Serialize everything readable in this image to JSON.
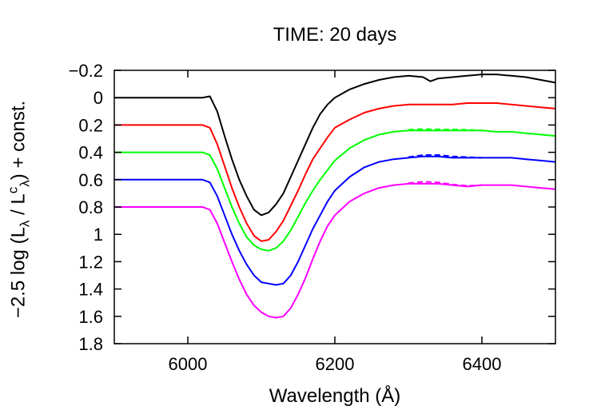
{
  "chart_data": {
    "type": "line",
    "title": "TIME: 20 days",
    "xlabel": "Wavelength (Å)",
    "ylabel": {
      "prefix": "−2.5 log (L",
      "sub1": "λ",
      "mid": " / L",
      "sup": "c",
      "sub2": "λ",
      "suffix": ") + const."
    },
    "xlim": [
      5900,
      6500
    ],
    "ylim": [
      -0.2,
      1.8
    ],
    "y_inverted": true,
    "xticks": [
      6000,
      6200,
      6400
    ],
    "xtick_labels": [
      "6000",
      "6200",
      "6400"
    ],
    "yticks": [
      -0.2,
      0,
      0.2,
      0.4,
      0.6,
      0.8,
      1,
      1.2,
      1.4,
      1.6,
      1.8
    ],
    "ytick_labels": [
      "−0.2",
      "0",
      "0.2",
      "0.4",
      "0.6",
      "0.8",
      "1",
      "1.2",
      "1.4",
      "1.6",
      "1.8"
    ],
    "grid": false,
    "legend": "none",
    "series": [
      {
        "color": "#000000",
        "style": "solid",
        "x": [
          5900,
          6020,
          6030,
          6040,
          6050,
          6060,
          6070,
          6080,
          6090,
          6100,
          6110,
          6120,
          6130,
          6140,
          6150,
          6160,
          6170,
          6180,
          6190,
          6200,
          6220,
          6240,
          6260,
          6280,
          6300,
          6320,
          6330,
          6340,
          6360,
          6380,
          6400,
          6420,
          6440,
          6460,
          6480,
          6500
        ],
        "y": [
          0,
          0,
          -0.01,
          0.1,
          0.28,
          0.45,
          0.6,
          0.72,
          0.82,
          0.86,
          0.84,
          0.78,
          0.7,
          0.58,
          0.46,
          0.34,
          0.22,
          0.12,
          0.05,
          0.0,
          -0.06,
          -0.1,
          -0.13,
          -0.15,
          -0.16,
          -0.15,
          -0.12,
          -0.14,
          -0.15,
          -0.16,
          -0.17,
          -0.17,
          -0.16,
          -0.15,
          -0.13,
          -0.11
        ]
      },
      {
        "color": "#ff0000",
        "style": "solid",
        "x": [
          5900,
          6020,
          6030,
          6040,
          6050,
          6060,
          6070,
          6080,
          6090,
          6100,
          6110,
          6120,
          6130,
          6140,
          6150,
          6160,
          6170,
          6180,
          6190,
          6200,
          6220,
          6240,
          6260,
          6280,
          6300,
          6320,
          6340,
          6360,
          6380,
          6400,
          6420,
          6440,
          6460,
          6480,
          6500
        ],
        "y": [
          0.2,
          0.2,
          0.22,
          0.34,
          0.5,
          0.66,
          0.8,
          0.92,
          1.01,
          1.05,
          1.04,
          0.98,
          0.9,
          0.79,
          0.68,
          0.56,
          0.45,
          0.37,
          0.29,
          0.22,
          0.16,
          0.11,
          0.08,
          0.06,
          0.05,
          0.05,
          0.05,
          0.05,
          0.04,
          0.04,
          0.04,
          0.05,
          0.06,
          0.07,
          0.08
        ]
      },
      {
        "color": "#00ff00",
        "style": "solid",
        "x": [
          5900,
          6020,
          6030,
          6040,
          6050,
          6060,
          6070,
          6080,
          6090,
          6100,
          6110,
          6120,
          6130,
          6140,
          6150,
          6160,
          6170,
          6180,
          6190,
          6200,
          6220,
          6240,
          6260,
          6280,
          6300,
          6320,
          6340,
          6360,
          6380,
          6400,
          6420,
          6440,
          6460,
          6480,
          6500
        ],
        "y": [
          0.4,
          0.4,
          0.42,
          0.52,
          0.66,
          0.8,
          0.92,
          1.02,
          1.08,
          1.11,
          1.12,
          1.1,
          1.05,
          0.97,
          0.87,
          0.77,
          0.68,
          0.6,
          0.53,
          0.46,
          0.37,
          0.31,
          0.27,
          0.25,
          0.24,
          0.24,
          0.24,
          0.24,
          0.24,
          0.24,
          0.25,
          0.25,
          0.26,
          0.27,
          0.28
        ]
      },
      {
        "color": "#0000ff",
        "style": "solid",
        "x": [
          5900,
          6020,
          6030,
          6040,
          6050,
          6060,
          6070,
          6080,
          6090,
          6100,
          6110,
          6120,
          6130,
          6140,
          6150,
          6160,
          6170,
          6180,
          6190,
          6200,
          6220,
          6240,
          6260,
          6280,
          6300,
          6320,
          6340,
          6360,
          6380,
          6400,
          6420,
          6440,
          6460,
          6480,
          6500
        ],
        "y": [
          0.6,
          0.6,
          0.62,
          0.72,
          0.86,
          1.0,
          1.12,
          1.22,
          1.3,
          1.35,
          1.36,
          1.37,
          1.36,
          1.3,
          1.2,
          1.08,
          0.96,
          0.86,
          0.76,
          0.68,
          0.58,
          0.51,
          0.47,
          0.45,
          0.44,
          0.43,
          0.43,
          0.44,
          0.44,
          0.44,
          0.44,
          0.44,
          0.45,
          0.46,
          0.47
        ]
      },
      {
        "color": "#ff00ff",
        "style": "solid",
        "x": [
          5900,
          6020,
          6030,
          6040,
          6050,
          6060,
          6070,
          6080,
          6090,
          6100,
          6110,
          6120,
          6130,
          6140,
          6150,
          6160,
          6170,
          6180,
          6190,
          6200,
          6220,
          6240,
          6260,
          6280,
          6300,
          6320,
          6340,
          6360,
          6380,
          6400,
          6420,
          6440,
          6460,
          6480,
          6500
        ],
        "y": [
          0.8,
          0.8,
          0.82,
          0.92,
          1.06,
          1.2,
          1.33,
          1.44,
          1.52,
          1.57,
          1.6,
          1.61,
          1.6,
          1.54,
          1.44,
          1.32,
          1.18,
          1.05,
          0.94,
          0.86,
          0.76,
          0.7,
          0.66,
          0.64,
          0.63,
          0.63,
          0.63,
          0.64,
          0.65,
          0.64,
          0.64,
          0.64,
          0.65,
          0.66,
          0.67
        ]
      },
      {
        "color": "#00ff00",
        "style": "dashed",
        "x": [
          6300,
          6320,
          6340,
          6360,
          6380,
          6400
        ],
        "y": [
          0.235,
          0.23,
          0.232,
          0.233,
          0.235,
          0.24
        ]
      },
      {
        "color": "#0000ff",
        "style": "dashed",
        "x": [
          6300,
          6320,
          6340,
          6360,
          6380,
          6400
        ],
        "y": [
          0.435,
          0.42,
          0.42,
          0.43,
          0.435,
          0.44
        ]
      },
      {
        "color": "#ff00ff",
        "style": "dashed",
        "x": [
          6300,
          6320,
          6340,
          6360,
          6380,
          6400
        ],
        "y": [
          0.625,
          0.615,
          0.62,
          0.635,
          0.645,
          0.64
        ]
      }
    ]
  }
}
